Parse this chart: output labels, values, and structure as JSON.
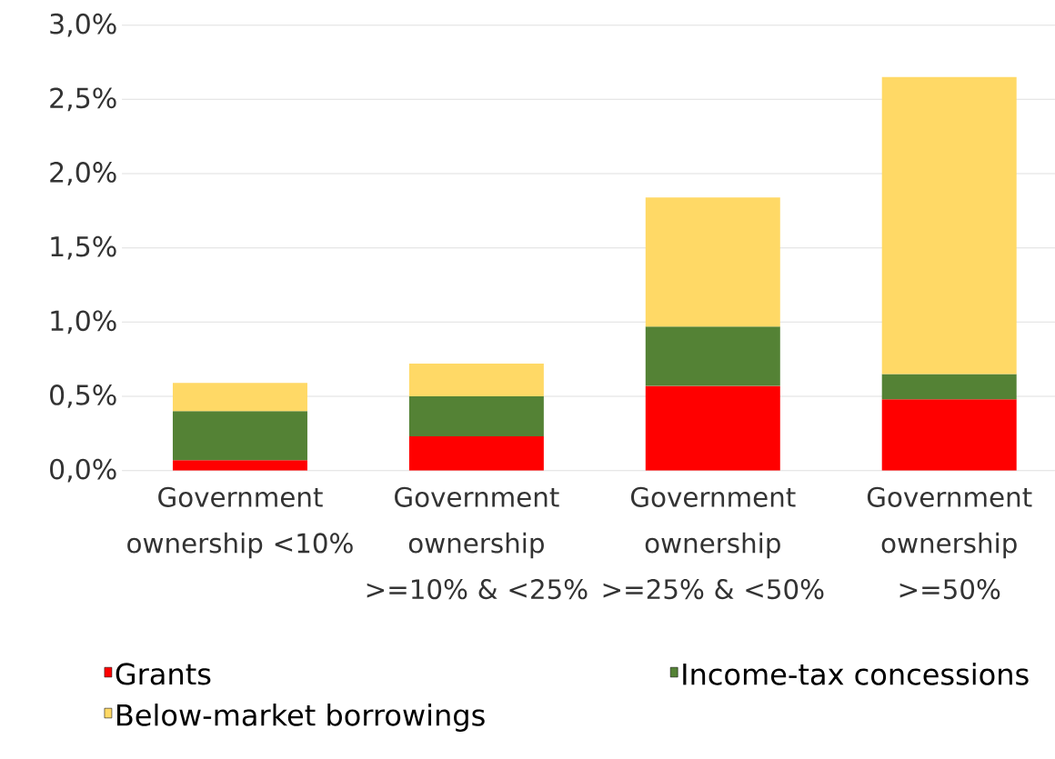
{
  "chart_data": {
    "type": "bar",
    "stacked": true,
    "categories": [
      "Government ownership <10%",
      "Government ownership >=10% & <25%",
      "Government ownership >=25% & <50%",
      "Government ownership >=50%"
    ],
    "series": [
      {
        "name": "Grants",
        "color": "#ff0000",
        "values": [
          0.07,
          0.23,
          0.57,
          0.48
        ]
      },
      {
        "name": "Income-tax concessions",
        "color": "#548235",
        "values": [
          0.33,
          0.27,
          0.4,
          0.17
        ]
      },
      {
        "name": "Below-market borrowings",
        "color": "#ffd966",
        "values": [
          0.19,
          0.22,
          0.87,
          2.0
        ]
      }
    ],
    "ylim": [
      0,
      3
    ],
    "yticks": [
      {
        "value": 0,
        "label": "0,0%"
      },
      {
        "value": 0.5,
        "label": "0,5%"
      },
      {
        "value": 1,
        "label": "1,0%"
      },
      {
        "value": 1.5,
        "label": "1,5%"
      },
      {
        "value": 2,
        "label": "2,0%"
      },
      {
        "value": 2.5,
        "label": "2,5%"
      },
      {
        "value": 3,
        "label": "3,0%"
      }
    ],
    "grid": "y",
    "legend": "bottom"
  }
}
